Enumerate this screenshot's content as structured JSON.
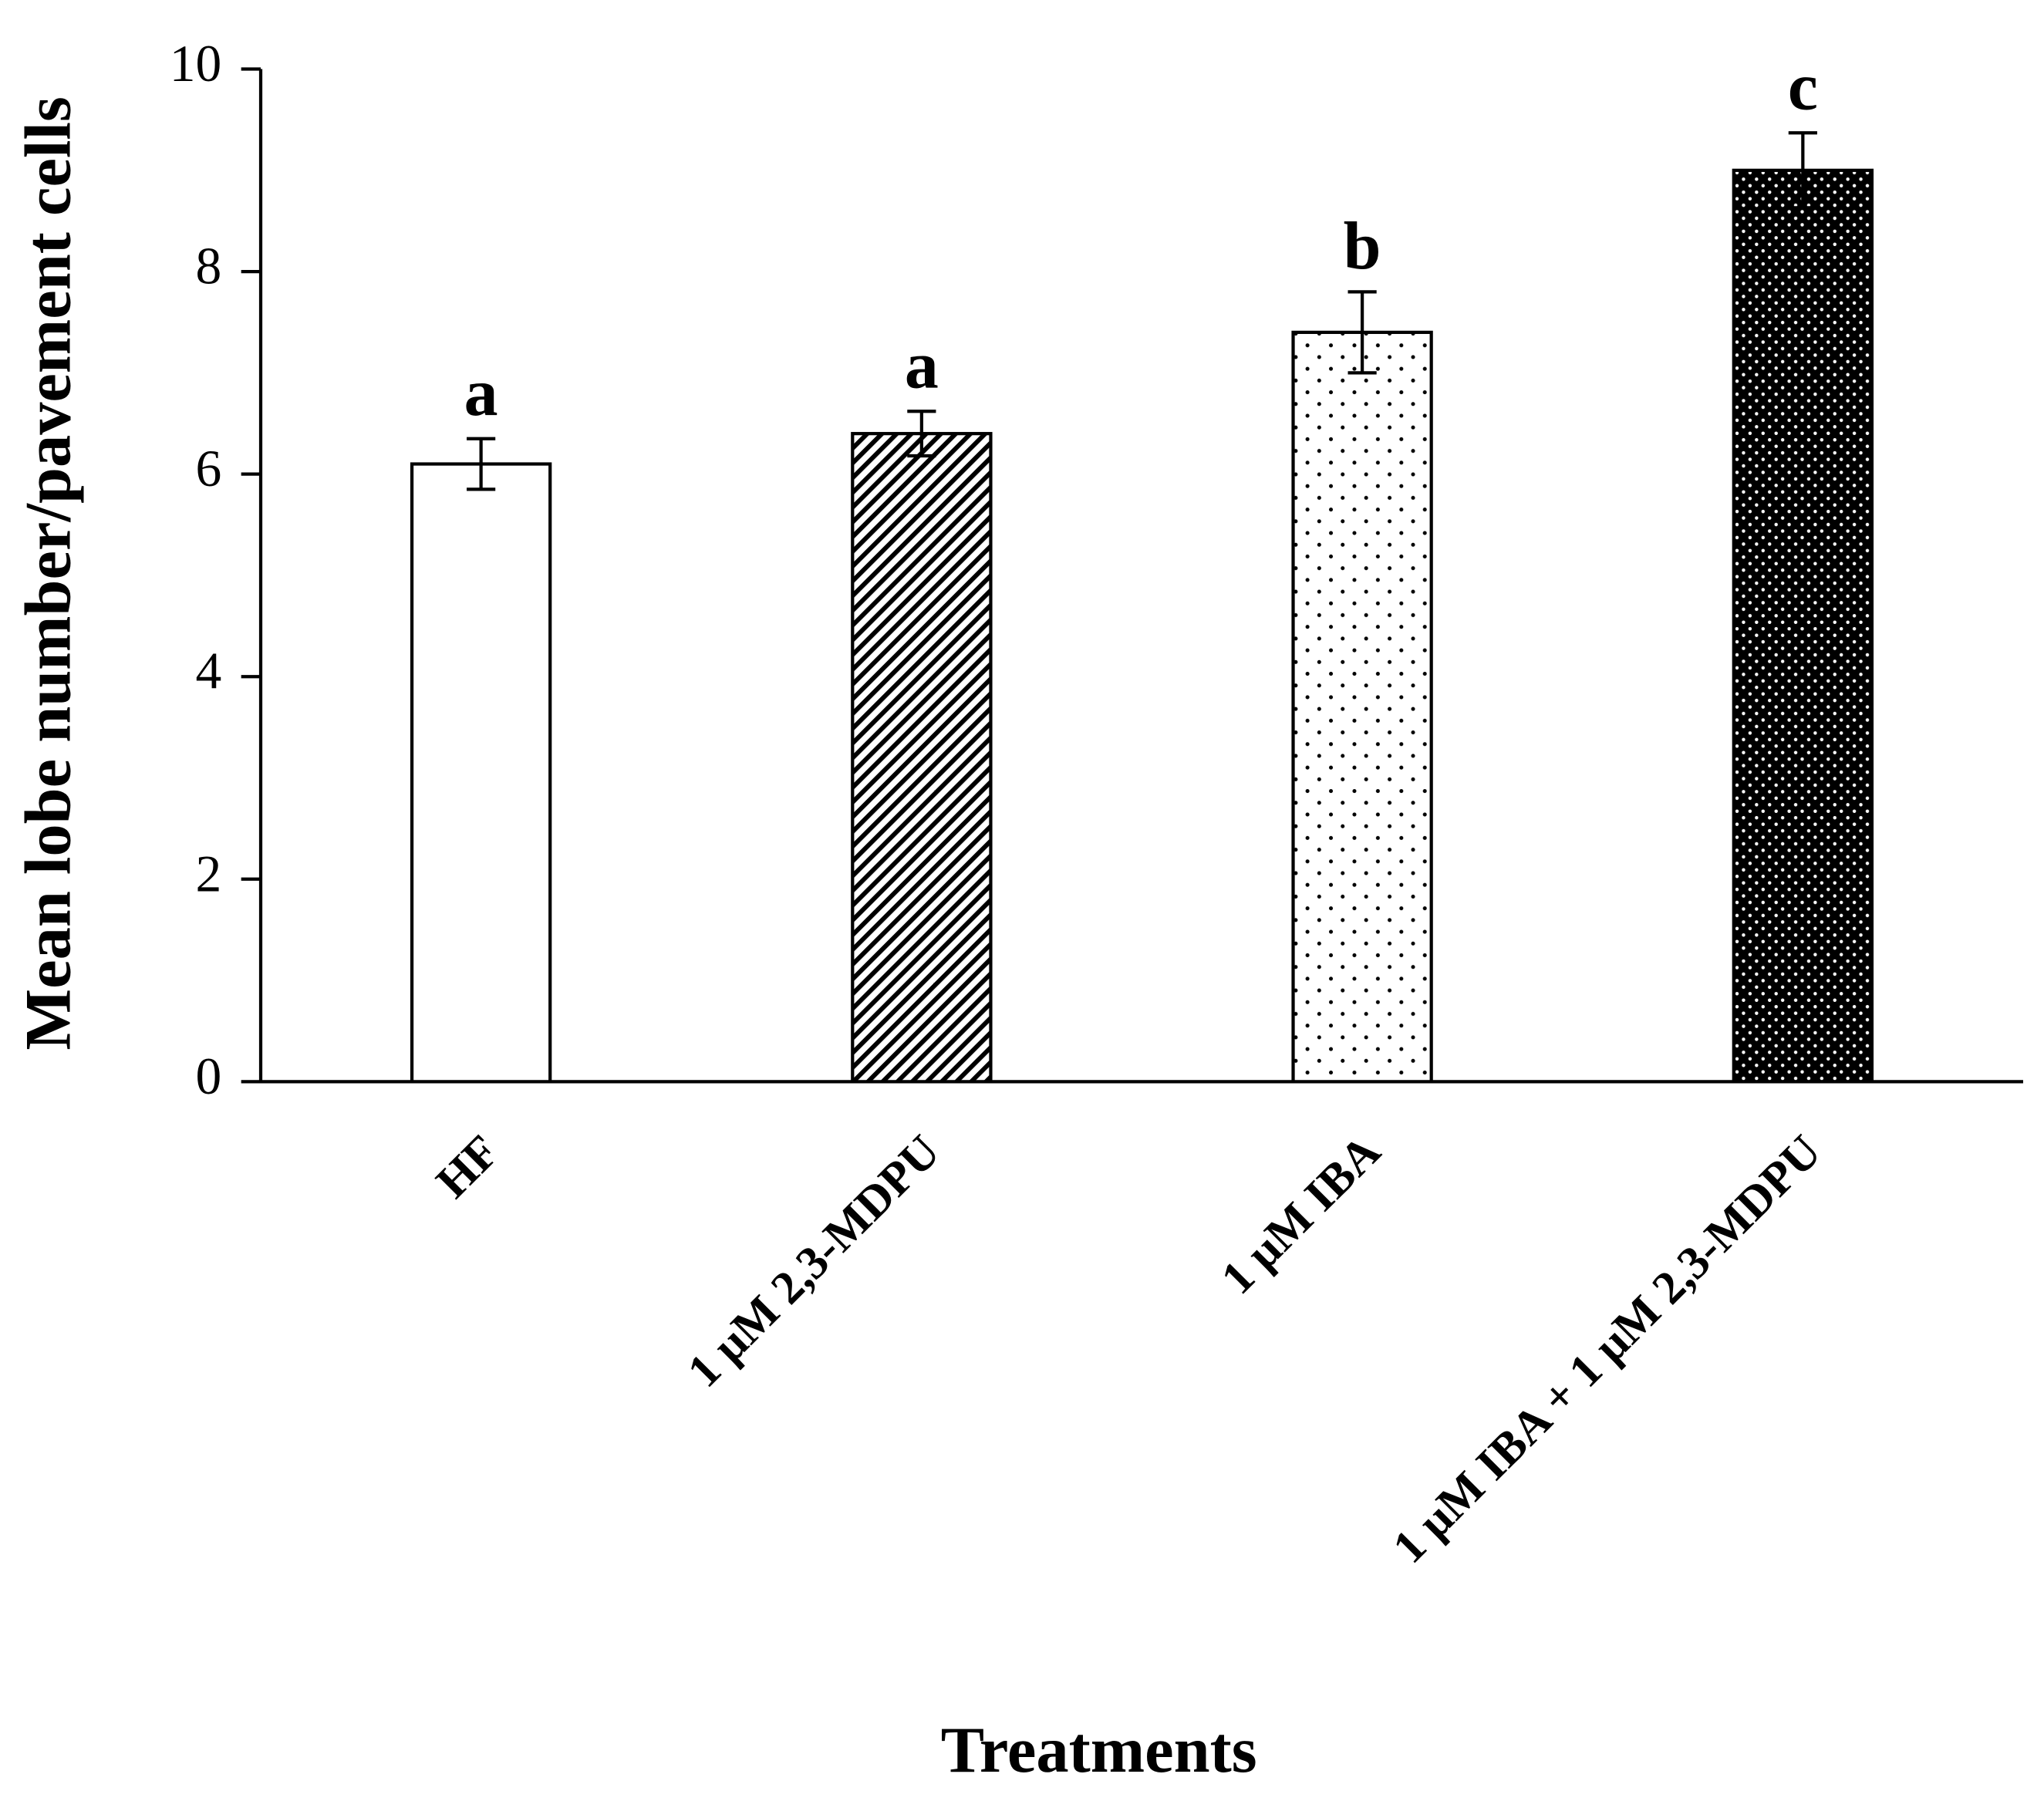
{
  "chart_data": {
    "type": "bar",
    "y_label": "Mean lobe number/pavement cells",
    "x_label": "Treatments",
    "categories": [
      "HF",
      "1 μM 2,3-MDPU",
      "1 μM IBA",
      "1 μM IBA + 1 μM 2,3-MDPU"
    ],
    "values": [
      6.1,
      6.4,
      7.4,
      9.0
    ],
    "errors": [
      0.25,
      0.22,
      0.4,
      0.37
    ],
    "letters": [
      "a",
      "a",
      "b",
      "c"
    ],
    "fills": [
      "none",
      "diagonal",
      "dots",
      "dense-dots"
    ],
    "color": "#000000",
    "ylim": [
      0,
      10
    ],
    "yticks": [
      0,
      2,
      4,
      6,
      8,
      10
    ],
    "grid": false
  }
}
